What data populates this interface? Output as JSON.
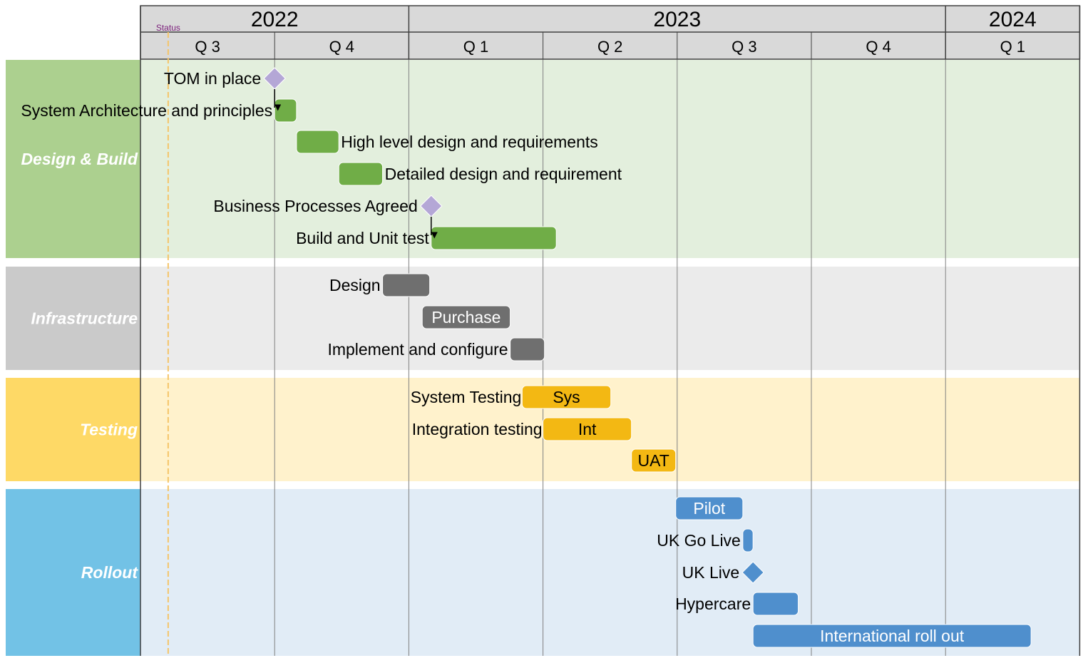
{
  "chart_data": {
    "type": "gantt",
    "timeline": {
      "years": [
        {
          "label": "2022",
          "start": "2022-07-01",
          "end": "2023-01-01"
        },
        {
          "label": "2023",
          "start": "2023-01-01",
          "end": "2024-01-01"
        },
        {
          "label": "2024",
          "start": "2024-01-01",
          "end": "2024-04-01"
        }
      ],
      "quarters": [
        {
          "label": "Q 3",
          "start": "2022-07-01",
          "end": "2022-10-01"
        },
        {
          "label": "Q 4",
          "start": "2022-10-01",
          "end": "2023-01-01"
        },
        {
          "label": "Q 1",
          "start": "2023-01-01",
          "end": "2023-04-01"
        },
        {
          "label": "Q 2",
          "start": "2023-04-01",
          "end": "2023-07-01"
        },
        {
          "label": "Q 3",
          "start": "2023-07-01",
          "end": "2023-10-01"
        },
        {
          "label": "Q 4",
          "start": "2023-10-01",
          "end": "2024-01-01"
        },
        {
          "label": "Q 1",
          "start": "2024-01-01",
          "end": "2024-04-01"
        }
      ]
    },
    "status": {
      "label": "Status",
      "date": "2022-07-20",
      "color": "#f5c56a"
    },
    "groups": [
      {
        "name": "Design & Build",
        "color": "#acd08f",
        "bg": "#e3efdd",
        "tasks": [
          {
            "label": "TOM in place",
            "type": "milestone",
            "date": "2022-10-01",
            "color": "#b4a7d6"
          },
          {
            "label": "System Architecture and principles",
            "type": "bar",
            "start": "2022-10-01",
            "end": "2022-10-16",
            "color": "#70ad47"
          },
          {
            "label": "High level design and requirements",
            "type": "bar",
            "start": "2022-10-16",
            "end": "2022-11-14",
            "color": "#70ad47"
          },
          {
            "label": "Detailed design and requirement",
            "type": "bar",
            "start": "2022-11-14",
            "end": "2022-12-14",
            "color": "#70ad47"
          },
          {
            "label": "Business Processes Agreed",
            "type": "milestone",
            "date": "2023-01-16",
            "color": "#b4a7d6"
          },
          {
            "label": "Build and Unit test",
            "type": "bar",
            "start": "2023-01-16",
            "end": "2023-04-10",
            "color": "#70ad47"
          }
        ]
      },
      {
        "name": "Infrastructure",
        "color": "#cacaca",
        "bg": "#ebebeb",
        "tasks": [
          {
            "label": "Design",
            "type": "bar",
            "start": "2022-12-14",
            "end": "2023-01-15",
            "color": "#6f6f6f"
          },
          {
            "label": "Purchase",
            "type": "bar",
            "inside": true,
            "start": "2023-01-10",
            "end": "2023-03-10",
            "color": "#6f6f6f"
          },
          {
            "label": "Implement and configure",
            "type": "bar",
            "start": "2023-03-10",
            "end": "2023-04-02",
            "color": "#6f6f6f"
          }
        ]
      },
      {
        "name": "Testing",
        "color": "#fed966",
        "bg": "#fff2cc",
        "tasks": [
          {
            "label": "System Testing",
            "type": "bar",
            "bar_text": "Sys",
            "start": "2023-03-18",
            "end": "2023-05-17",
            "color": "#f3b813"
          },
          {
            "label": "Integration testing",
            "type": "bar",
            "bar_text": "Int",
            "start": "2023-04-01",
            "end": "2023-05-31",
            "color": "#f3b813"
          },
          {
            "label": "",
            "type": "bar",
            "bar_text": "UAT",
            "start": "2023-05-31",
            "end": "2023-06-30",
            "color": "#f3b813"
          }
        ]
      },
      {
        "name": "Rollout",
        "color": "#72c2e6",
        "bg": "#e1ecf6",
        "tasks": [
          {
            "label": "Pilot",
            "type": "bar",
            "inside": true,
            "start": "2023-06-30",
            "end": "2023-08-15",
            "color": "#4f8fcd"
          },
          {
            "label": "UK Go Live",
            "type": "bar",
            "start": "2023-08-15",
            "end": "2023-08-22",
            "color": "#4f8fcd"
          },
          {
            "label": "UK Live",
            "type": "milestone",
            "date": "2023-08-22",
            "color": "#4f8fcd"
          },
          {
            "label": "Hypercare",
            "type": "bar",
            "start": "2023-08-22",
            "end": "2023-09-22",
            "color": "#4f8fcd"
          },
          {
            "label": "International roll out",
            "type": "bar",
            "inside": true,
            "start": "2023-08-22",
            "end": "2024-02-28",
            "color": "#4f8fcd"
          }
        ]
      }
    ]
  }
}
